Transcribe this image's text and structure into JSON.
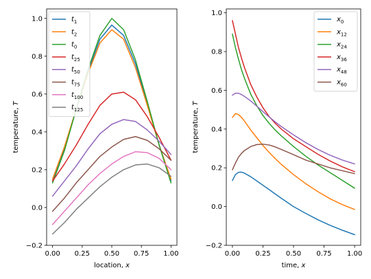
{
  "chart_data": [
    {
      "type": "line",
      "xlabel_text": "location, ",
      "xlabel_var": "x",
      "ylabel_text": "temperature, ",
      "ylabel_var": "T",
      "xlim": [
        -0.05,
        1.05
      ],
      "ylim": [
        -0.2,
        1.05
      ],
      "xticks": [
        "0.00",
        "0.25",
        "0.50",
        "0.75",
        "1.00"
      ],
      "yticks": [
        "−0.2",
        "0.0",
        "0.2",
        "0.4",
        "0.6",
        "0.8",
        "1.0"
      ],
      "legend_position": "top-left",
      "x": [
        0,
        0.1,
        0.2,
        0.3,
        0.4,
        0.5,
        0.6,
        0.7,
        0.8,
        0.9,
        1.0
      ],
      "series": [
        {
          "var": "t",
          "sub": "1",
          "color": "#1f77b4",
          "values": [
            0.14,
            0.31,
            0.52,
            0.72,
            0.89,
            0.965,
            0.91,
            0.76,
            0.55,
            0.33,
            0.14
          ]
        },
        {
          "var": "t",
          "sub": "2",
          "color": "#ff7f0e",
          "values": [
            0.15,
            0.32,
            0.52,
            0.71,
            0.87,
            0.94,
            0.89,
            0.74,
            0.54,
            0.33,
            0.15
          ]
        },
        {
          "var": "t",
          "sub": "0",
          "color": "#2ca02c",
          "values": [
            0.13,
            0.3,
            0.52,
            0.73,
            0.91,
            1.0,
            0.94,
            0.78,
            0.56,
            0.33,
            0.13
          ]
        },
        {
          "var": "t",
          "sub": "25",
          "color": "#d62728",
          "values": [
            0.14,
            0.23,
            0.33,
            0.44,
            0.54,
            0.6,
            0.61,
            0.57,
            0.48,
            0.37,
            0.25
          ]
        },
        {
          "var": "t",
          "sub": "50",
          "color": "#9467bd",
          "values": [
            0.06,
            0.14,
            0.22,
            0.31,
            0.39,
            0.44,
            0.465,
            0.455,
            0.41,
            0.35,
            0.28
          ]
        },
        {
          "var": "t",
          "sub": "75",
          "color": "#8c564b",
          "values": [
            -0.02,
            0.05,
            0.13,
            0.2,
            0.27,
            0.32,
            0.36,
            0.375,
            0.355,
            0.31,
            0.25
          ]
        },
        {
          "var": "t",
          "sub": "100",
          "color": "#e377c2",
          "values": [
            -0.09,
            -0.02,
            0.05,
            0.12,
            0.18,
            0.23,
            0.27,
            0.295,
            0.29,
            0.26,
            0.2
          ]
        },
        {
          "var": "t",
          "sub": "125",
          "color": "#7f7f7f",
          "values": [
            -0.14,
            -0.08,
            -0.01,
            0.05,
            0.11,
            0.16,
            0.2,
            0.225,
            0.23,
            0.21,
            0.165
          ]
        }
      ]
    },
    {
      "type": "line",
      "xlabel_text": "time, ",
      "xlabel_var": "x",
      "ylabel_text": "temperature, ",
      "ylabel_var": "T",
      "xlim": [
        -0.05,
        1.05
      ],
      "ylim": [
        -0.2,
        1.02
      ],
      "xticks": [
        "0.00",
        "0.25",
        "0.50",
        "0.75",
        "1.00"
      ],
      "yticks": [
        "−0.2",
        "0.0",
        "0.2",
        "0.4",
        "0.6",
        "0.8",
        "1.0"
      ],
      "legend_position": "top-right",
      "x": [
        0,
        0.025,
        0.05,
        0.075,
        0.1,
        0.15,
        0.2,
        0.25,
        0.3,
        0.35,
        0.4,
        0.5,
        0.6,
        0.7,
        0.8,
        0.9,
        1.0
      ],
      "series": [
        {
          "var": "x",
          "sub": "0",
          "color": "#1f77b4",
          "values": [
            0.135,
            0.165,
            0.177,
            0.178,
            0.172,
            0.154,
            0.132,
            0.11,
            0.088,
            0.065,
            0.043,
            0.0,
            -0.035,
            -0.068,
            -0.097,
            -0.122,
            -0.145
          ]
        },
        {
          "var": "x",
          "sub": "12",
          "color": "#ff7f0e",
          "values": [
            0.46,
            0.48,
            0.475,
            0.46,
            0.44,
            0.395,
            0.355,
            0.315,
            0.28,
            0.248,
            0.218,
            0.165,
            0.118,
            0.077,
            0.04,
            0.01,
            -0.015
          ]
        },
        {
          "var": "x",
          "sub": "24",
          "color": "#2ca02c",
          "values": [
            0.89,
            0.82,
            0.76,
            0.705,
            0.66,
            0.58,
            0.52,
            0.47,
            0.43,
            0.395,
            0.365,
            0.31,
            0.26,
            0.215,
            0.175,
            0.135,
            0.095
          ]
        },
        {
          "var": "x",
          "sub": "36",
          "color": "#d62728",
          "values": [
            0.96,
            0.89,
            0.82,
            0.765,
            0.715,
            0.63,
            0.565,
            0.51,
            0.465,
            0.43,
            0.4,
            0.35,
            0.31,
            0.27,
            0.235,
            0.205,
            0.18
          ]
        },
        {
          "var": "x",
          "sub": "48",
          "color": "#9467bd",
          "values": [
            0.575,
            0.585,
            0.585,
            0.578,
            0.568,
            0.545,
            0.518,
            0.49,
            0.463,
            0.437,
            0.413,
            0.37,
            0.33,
            0.295,
            0.265,
            0.24,
            0.22
          ]
        },
        {
          "var": "x",
          "sub": "60",
          "color": "#8c564b",
          "values": [
            0.19,
            0.225,
            0.255,
            0.275,
            0.29,
            0.31,
            0.32,
            0.322,
            0.318,
            0.308,
            0.295,
            0.268,
            0.24,
            0.22,
            0.2,
            0.185,
            0.17
          ]
        }
      ]
    }
  ]
}
